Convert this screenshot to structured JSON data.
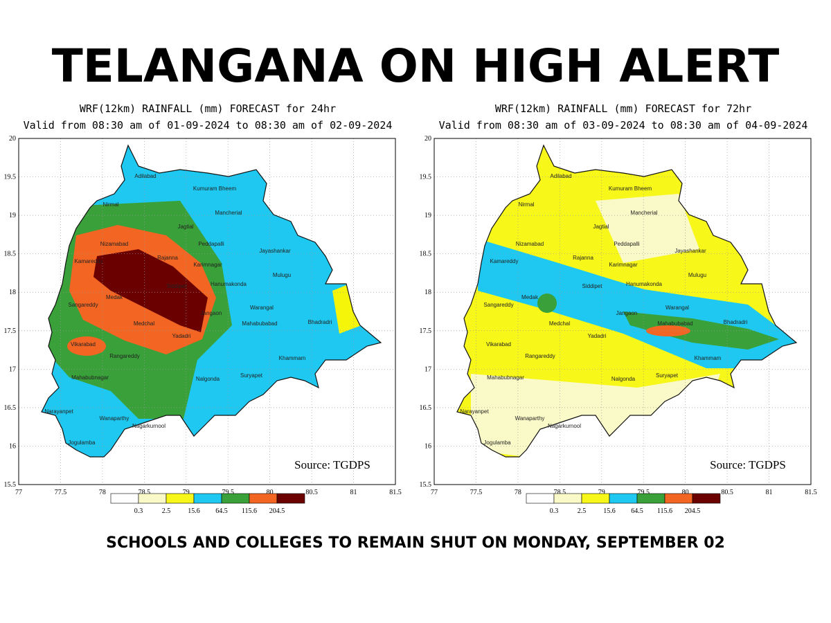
{
  "headline": "TELANGANA ON HIGH ALERT",
  "maps": [
    {
      "title": "WRF(12km) RAINFALL (mm) FORECAST for 24hr",
      "subtitle": "Valid from 08:30 am of 01-09-2024 to 08:30 am of 02-09-2024"
    },
    {
      "title": "WRF(12km)  RAINFALL (mm) FORECAST for 72hr",
      "subtitle": "Valid from 08:30 am of 03-09-2024 to 08:30 am of 04-09-2024"
    }
  ],
  "x_ticks": [
    77,
    77.5,
    78,
    78.5,
    79,
    79.5,
    80,
    80.5,
    81,
    81.5
  ],
  "y_ticks": [
    15.5,
    16,
    16.5,
    17,
    17.5,
    18,
    18.5,
    19,
    19.5,
    20
  ],
  "legend_breaks": [
    0.3,
    2.5,
    15.6,
    64.5,
    115.6,
    204.5
  ],
  "source": "Source: TGDPS",
  "districts": [
    "Adilabad",
    "Kumuram Bheem",
    "Nirmal",
    "Mancherial",
    "Jagtial",
    "Nizamabad",
    "Peddapalli",
    "Jayashankar",
    "Rajanna",
    "Karimnagar",
    "Kamareddy",
    "Mulugu",
    "Hanumakonda",
    "Siddipet",
    "Medak",
    "Warangal",
    "Sangareddy",
    "Jangaon",
    "Bhadradri",
    "Mahabubabad",
    "Medchal",
    "Yadadri",
    "Vikarabad",
    "Khammam",
    "Rangareddy",
    "Suryapet",
    "Mahabubnagar",
    "Nalgonda",
    "Narayanpet",
    "Wanaparthy",
    "Nagarkurnool",
    "Jogulamba"
  ],
  "footer": "SCHOOLS AND COLLEGES TO REMAIN SHUT ON MONDAY, SEPTEMBER 02"
}
